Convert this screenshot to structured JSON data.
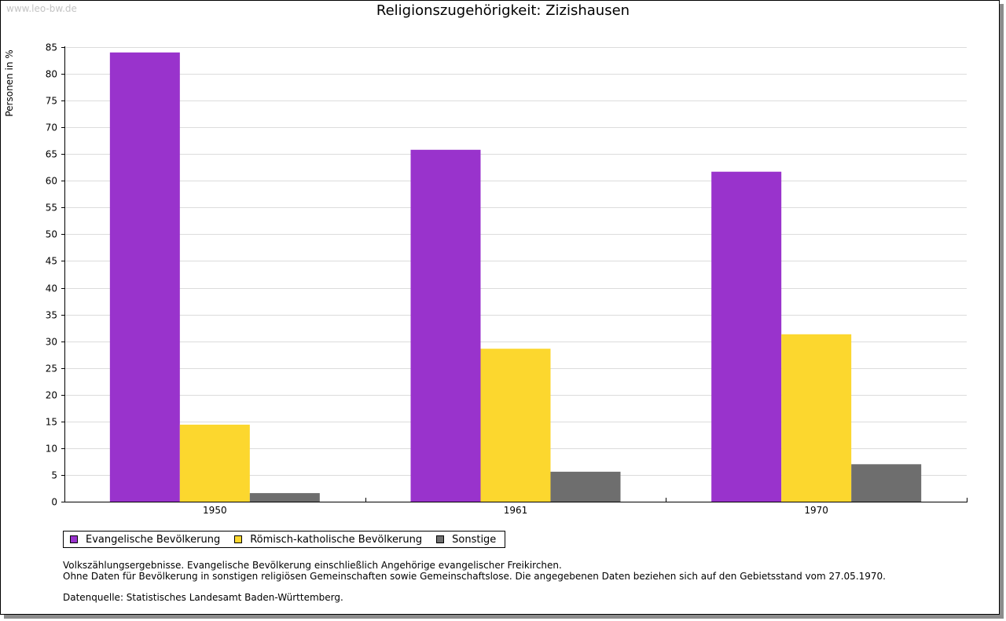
{
  "watermark": "www.leo-bw.de",
  "chart_data": {
    "type": "bar",
    "title": "Religionszugehörigkeit: Zizishausen",
    "xlabel": "",
    "ylabel": "Personen in %",
    "ylim": [
      0,
      85
    ],
    "yticks": [
      0,
      5,
      10,
      15,
      20,
      25,
      30,
      35,
      40,
      45,
      50,
      55,
      60,
      65,
      70,
      75,
      80,
      85
    ],
    "grid": true,
    "legend_position": "bottom-left",
    "categories": [
      "1950",
      "1961",
      "1970"
    ],
    "series": [
      {
        "name": "Evangelische Bevölkerung",
        "color": "#9933cc",
        "values": [
          84.0,
          65.8,
          61.7
        ]
      },
      {
        "name": "Römisch-katholische Bevölkerung",
        "color": "#fcd72e",
        "values": [
          14.4,
          28.6,
          31.3
        ]
      },
      {
        "name": "Sonstige",
        "color": "#6e6e6e",
        "values": [
          1.6,
          5.6,
          7.0
        ]
      }
    ]
  },
  "notes": [
    "Volkszählungsergebnisse. Evangelische Bevölkerung einschließlich Angehörige evangelischer Freikirchen.",
    "Ohne Daten für Bevölkerung in sonstigen religiösen Gemeinschaften sowie Gemeinschaftslose. Die angegebenen Daten beziehen sich auf den Gebietsstand vom 27.05.1970."
  ],
  "source": "Datenquelle: Statistisches Landesamt Baden-Württemberg."
}
